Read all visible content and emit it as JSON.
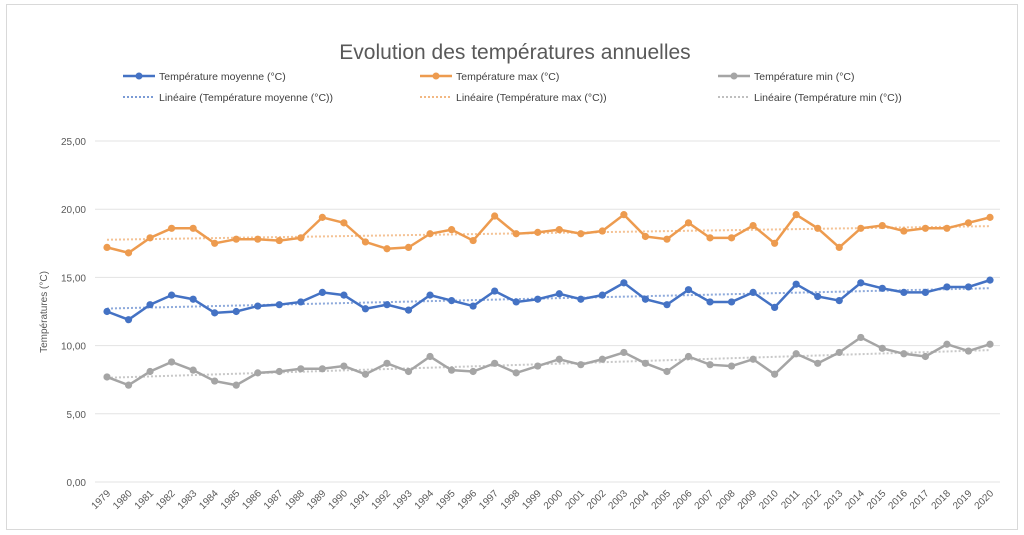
{
  "chart_data": {
    "type": "line",
    "title": "Evolution des températures annuelles",
    "xlabel": "",
    "ylabel": "Températures (°C)",
    "ylim": [
      0,
      25
    ],
    "yticks": [
      "0,00",
      "5,00",
      "10,00",
      "15,00",
      "20,00",
      "25,00"
    ],
    "grid": true,
    "legend_position": "top",
    "categories": [
      "1979",
      "1980",
      "1981",
      "1982",
      "1983",
      "1984",
      "1985",
      "1986",
      "1987",
      "1988",
      "1989",
      "1990",
      "1991",
      "1992",
      "1993",
      "1994",
      "1995",
      "1996",
      "1997",
      "1998",
      "1999",
      "2000",
      "2001",
      "2002",
      "2003",
      "2004",
      "2005",
      "2006",
      "2007",
      "2008",
      "2009",
      "2010",
      "2011",
      "2012",
      "2013",
      "2014",
      "2015",
      "2016",
      "2017",
      "2018",
      "2019",
      "2020"
    ],
    "series": [
      {
        "name": "Température moyenne (°C)",
        "color": "#4472c4",
        "trend_name": "Linéaire (Température moyenne (°C))",
        "values": [
          12.5,
          11.9,
          13.0,
          13.7,
          13.4,
          12.4,
          12.5,
          12.9,
          13.0,
          13.2,
          13.9,
          13.7,
          12.7,
          13.0,
          12.6,
          13.7,
          13.3,
          12.9,
          14.0,
          13.2,
          13.4,
          13.8,
          13.4,
          13.7,
          14.6,
          13.4,
          13.0,
          14.1,
          13.2,
          13.2,
          13.9,
          12.8,
          14.5,
          13.6,
          13.3,
          14.6,
          14.2,
          13.9,
          13.9,
          14.3,
          14.3,
          14.8
        ]
      },
      {
        "name": "Température max (°C)",
        "color": "#ed9b4f",
        "trend_name": "Linéaire (Température max (°C))",
        "values": [
          17.2,
          16.8,
          17.9,
          18.6,
          18.6,
          17.5,
          17.8,
          17.8,
          17.7,
          17.9,
          19.4,
          19.0,
          17.6,
          17.1,
          17.2,
          18.2,
          18.5,
          17.7,
          19.5,
          18.2,
          18.3,
          18.5,
          18.2,
          18.4,
          19.6,
          18.0,
          17.8,
          19.0,
          17.9,
          17.9,
          18.8,
          17.5,
          19.6,
          18.6,
          17.2,
          18.6,
          18.8,
          18.4,
          18.6,
          18.6,
          19.0,
          19.4
        ]
      },
      {
        "name": "Température min (°C)",
        "color": "#a5a5a5",
        "trend_name": "Linéaire (Température min (°C))",
        "values": [
          7.7,
          7.1,
          8.1,
          8.8,
          8.2,
          7.4,
          7.1,
          8.0,
          8.1,
          8.3,
          8.3,
          8.5,
          7.9,
          8.7,
          8.1,
          9.2,
          8.2,
          8.1,
          8.7,
          8.0,
          8.5,
          9.0,
          8.6,
          9.0,
          9.5,
          8.7,
          8.1,
          9.2,
          8.6,
          8.5,
          9.0,
          7.9,
          9.4,
          8.7,
          9.5,
          10.6,
          9.8,
          9.4,
          9.2,
          10.1,
          9.6,
          10.1
        ]
      }
    ]
  }
}
